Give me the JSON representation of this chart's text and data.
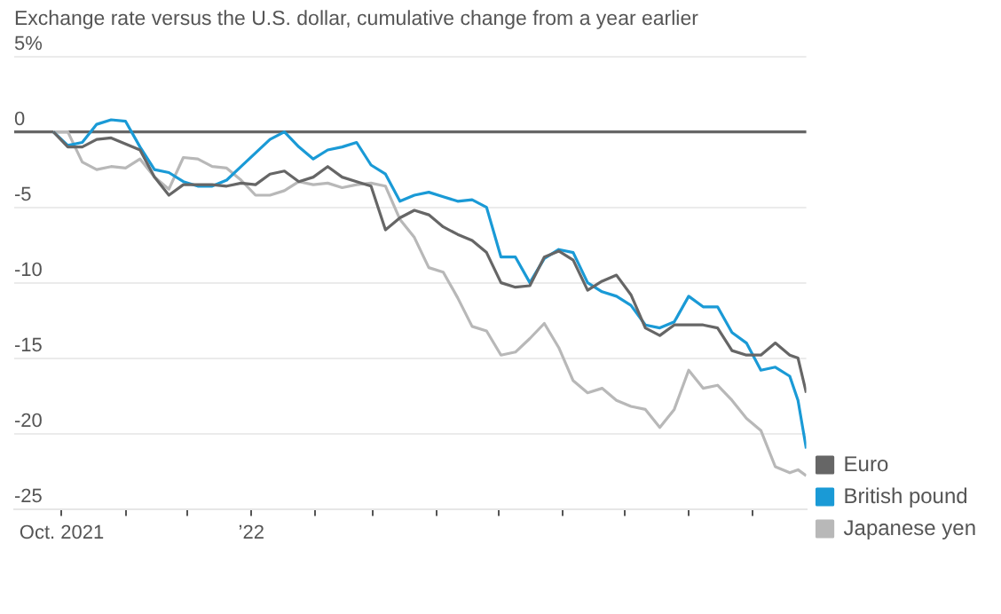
{
  "chart_data": {
    "type": "line",
    "title": "Exchange rate versus the U.S. dollar, cumulative change from a year earlier",
    "x": [
      "2021-09-27",
      "2021-10-04",
      "2021-10-11",
      "2021-10-18",
      "2021-10-25",
      "2021-11-01",
      "2021-11-08",
      "2021-11-15",
      "2021-11-22",
      "2021-11-29",
      "2021-12-06",
      "2021-12-13",
      "2021-12-20",
      "2021-12-27",
      "2022-01-03",
      "2022-01-10",
      "2022-01-17",
      "2022-01-24",
      "2022-01-31",
      "2022-02-07",
      "2022-02-14",
      "2022-02-21",
      "2022-02-28",
      "2022-03-07",
      "2022-03-14",
      "2022-03-21",
      "2022-03-28",
      "2022-04-04",
      "2022-04-11",
      "2022-04-18",
      "2022-04-25",
      "2022-05-02",
      "2022-05-09",
      "2022-05-16",
      "2022-05-23",
      "2022-05-30",
      "2022-06-06",
      "2022-06-13",
      "2022-06-20",
      "2022-06-27",
      "2022-07-04",
      "2022-07-11",
      "2022-07-18",
      "2022-07-25",
      "2022-08-01",
      "2022-08-08",
      "2022-08-15",
      "2022-08-22",
      "2022-08-29",
      "2022-09-05",
      "2022-09-12",
      "2022-09-19",
      "2022-09-23",
      "2022-09-27"
    ],
    "series": [
      {
        "name": "Euro",
        "color": "#666666",
        "values": [
          0,
          -1.0,
          -1.0,
          -0.5,
          -0.4,
          -0.8,
          -1.2,
          -3.0,
          -4.2,
          -3.5,
          -3.5,
          -3.5,
          -3.6,
          -3.4,
          -3.5,
          -2.8,
          -2.6,
          -3.3,
          -3.0,
          -2.3,
          -3.0,
          -3.3,
          -3.6,
          -6.5,
          -5.7,
          -5.2,
          -5.5,
          -6.3,
          -6.8,
          -7.2,
          -8.0,
          -10.0,
          -10.3,
          -10.2,
          -8.3,
          -7.9,
          -8.5,
          -10.5,
          -9.9,
          -9.5,
          -10.8,
          -13.0,
          -13.5,
          -12.8,
          -12.8,
          -12.8,
          -13.0,
          -14.5,
          -14.8,
          -14.8,
          -14.0,
          -14.8,
          -15.0,
          -17.3
        ]
      },
      {
        "name": "British pound",
        "color": "#1a9ad6",
        "values": [
          0,
          -0.9,
          -0.7,
          0.5,
          0.8,
          0.7,
          -1.0,
          -2.5,
          -2.7,
          -3.3,
          -3.6,
          -3.6,
          -3.2,
          -2.3,
          -1.4,
          -0.5,
          0.0,
          -1.0,
          -1.8,
          -1.2,
          -1.0,
          -0.7,
          -2.2,
          -2.8,
          -4.6,
          -4.2,
          -4.0,
          -4.3,
          -4.6,
          -4.5,
          -5.0,
          -8.3,
          -8.3,
          -10.0,
          -8.4,
          -7.8,
          -8.0,
          -10.0,
          -10.6,
          -10.9,
          -11.5,
          -12.8,
          -13.0,
          -12.6,
          -10.9,
          -11.6,
          -11.6,
          -13.3,
          -14.0,
          -15.8,
          -15.6,
          -16.2,
          -17.8,
          -21.0
        ]
      },
      {
        "name": "Japanese yen",
        "color": "#b8b8b8",
        "values": [
          0,
          0.0,
          -2.0,
          -2.5,
          -2.3,
          -2.4,
          -1.8,
          -3.0,
          -3.8,
          -1.7,
          -1.8,
          -2.3,
          -2.4,
          -3.2,
          -4.2,
          -4.2,
          -3.9,
          -3.3,
          -3.5,
          -3.4,
          -3.7,
          -3.5,
          -3.4,
          -3.6,
          -5.8,
          -7.0,
          -9.0,
          -9.3,
          -11.0,
          -12.9,
          -13.2,
          -14.8,
          -14.6,
          -13.7,
          -12.7,
          -14.3,
          -16.5,
          -17.3,
          -17.0,
          -17.8,
          -18.2,
          -18.4,
          -19.6,
          -18.4,
          -15.8,
          -17.0,
          -16.8,
          -17.8,
          -19.0,
          -19.8,
          -22.2,
          -22.6,
          -22.4,
          -22.8
        ]
      }
    ],
    "xlim": [
      "2021-09-08",
      "2022-09-27"
    ],
    "xticks": [
      {
        "value": "2021-10-01",
        "label": "Oct. 2021"
      },
      {
        "value": "2021-11-01",
        "label": null
      },
      {
        "value": "2021-12-01",
        "label": null
      },
      {
        "value": "2022-01-01",
        "label": "’22"
      },
      {
        "value": "2022-02-01",
        "label": null
      },
      {
        "value": "2022-03-01",
        "label": null
      },
      {
        "value": "2022-04-01",
        "label": null
      },
      {
        "value": "2022-05-01",
        "label": null
      },
      {
        "value": "2022-06-01",
        "label": null
      },
      {
        "value": "2022-07-01",
        "label": null
      },
      {
        "value": "2022-08-01",
        "label": null
      },
      {
        "value": "2022-09-01",
        "label": null
      }
    ],
    "ylim": [
      -25,
      5
    ],
    "yticks": [
      {
        "value": 5,
        "label": "5%"
      },
      0,
      -5,
      -10,
      -15,
      -20,
      -25
    ],
    "ref_lines": [
      {
        "axis": "y",
        "value": 0,
        "color": "#666666"
      }
    ],
    "grid": "y",
    "legend": "right",
    "marker": "none",
    "line_style": "solid"
  }
}
